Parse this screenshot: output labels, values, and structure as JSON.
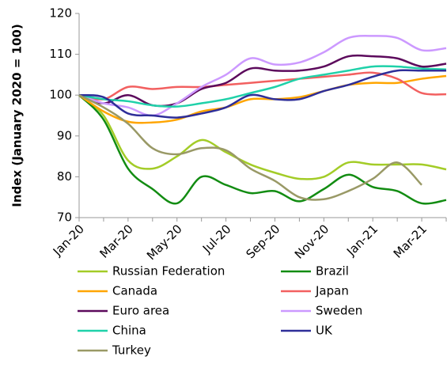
{
  "chart_data": {
    "type": "line",
    "y_label": "Index (January 2020 = 100)",
    "categories": [
      "Jan-20",
      null,
      "Mar-20",
      null,
      "May-20",
      null,
      "Jul-20",
      null,
      "Sep-20",
      null,
      "Nov-20",
      null,
      "Jan-21",
      null,
      "Mar-21",
      null
    ],
    "ylim": [
      70,
      120
    ],
    "yticks": [
      70,
      80,
      90,
      100,
      110,
      120
    ],
    "grid": false,
    "series": [
      {
        "name": "Russian Federation",
        "color": "#a3cc27",
        "values": [
          100,
          95,
          84,
          82,
          85,
          89,
          86,
          83,
          81,
          79.5,
          80,
          83.5,
          83,
          83,
          83,
          81.8
        ]
      },
      {
        "name": "Brazil",
        "color": "#128c12",
        "values": [
          100,
          94,
          82,
          77,
          73.5,
          80,
          78,
          76,
          76.5,
          74,
          77,
          80.5,
          77.5,
          76.5,
          73.5,
          74.3
        ]
      },
      {
        "name": "Canada",
        "color": "#ffa500",
        "values": [
          100,
          96,
          93.5,
          93.3,
          94,
          96,
          97,
          99,
          99,
          99.5,
          101,
          102.5,
          103,
          103,
          104,
          104.7
        ]
      },
      {
        "name": "Japan",
        "color": "#f26060",
        "values": [
          100,
          99,
          102,
          101.5,
          102,
          102,
          102.5,
          103,
          103.5,
          104,
          104.5,
          105,
          105.5,
          104,
          100.5,
          100.2
        ]
      },
      {
        "name": "Euro area",
        "color": "#5c0a5c",
        "values": [
          100,
          98,
          100,
          97.5,
          98,
          101.5,
          103,
          106.5,
          106,
          106,
          107,
          109.5,
          109.5,
          109,
          107,
          107.7
        ]
      },
      {
        "name": "Sweden",
        "color": "#cc99ff",
        "values": [
          100,
          98,
          97,
          95,
          98,
          102,
          105,
          109,
          107.5,
          108,
          110.5,
          114,
          114.5,
          114,
          111,
          111.5
        ]
      },
      {
        "name": "China",
        "color": "#1fd1a9",
        "values": [
          100,
          99,
          98.5,
          97.5,
          97.2,
          98,
          99,
          100.5,
          102,
          104,
          105,
          106,
          107,
          107,
          106.5,
          106.3
        ]
      },
      {
        "name": "UK",
        "color": "#2e2e99",
        "values": [
          100,
          99.5,
          95.5,
          95,
          94.5,
          95.5,
          97,
          100,
          99,
          99,
          101,
          102.5,
          104.5,
          106,
          106,
          106
        ]
      },
      {
        "name": "Turkey",
        "color": "#999966",
        "values": [
          100,
          97,
          93,
          87,
          85.5,
          87,
          86.5,
          82,
          79,
          75,
          74.5,
          76.5,
          79.5,
          83.5,
          78,
          null
        ]
      }
    ]
  }
}
